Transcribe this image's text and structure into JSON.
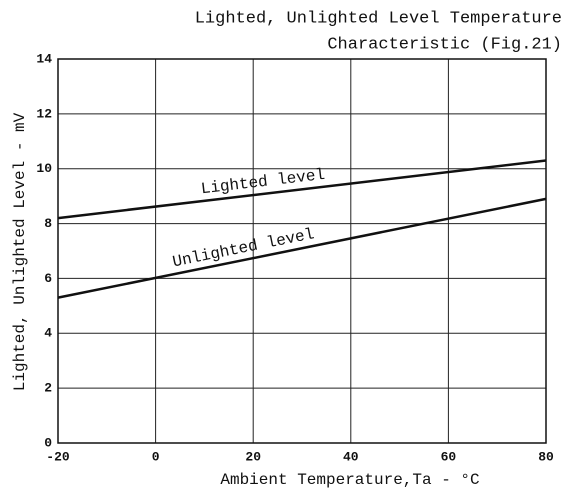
{
  "chart_data": {
    "type": "line",
    "title": [
      "Lighted, Unlighted Level Temperature",
      "Characteristic (Fig.21)"
    ],
    "x_label": "Ambient Temperature,Ta - °C",
    "y_label": "Lighted, Unlighted Level - mV",
    "x": [
      -20,
      80
    ],
    "series": [
      {
        "name": "Lighted level",
        "color": "#111111",
        "values": [
          8.2,
          10.3
        ]
      },
      {
        "name": "Unlighted level",
        "color": "#111111",
        "values": [
          5.3,
          8.9
        ]
      }
    ],
    "xlim": [
      -20,
      80
    ],
    "xticks": [
      -20,
      0,
      20,
      40,
      60,
      80
    ],
    "ylim": [
      0,
      14
    ],
    "yticks": [
      0,
      2,
      4,
      6,
      8,
      10,
      12,
      14
    ],
    "grid": true
  }
}
